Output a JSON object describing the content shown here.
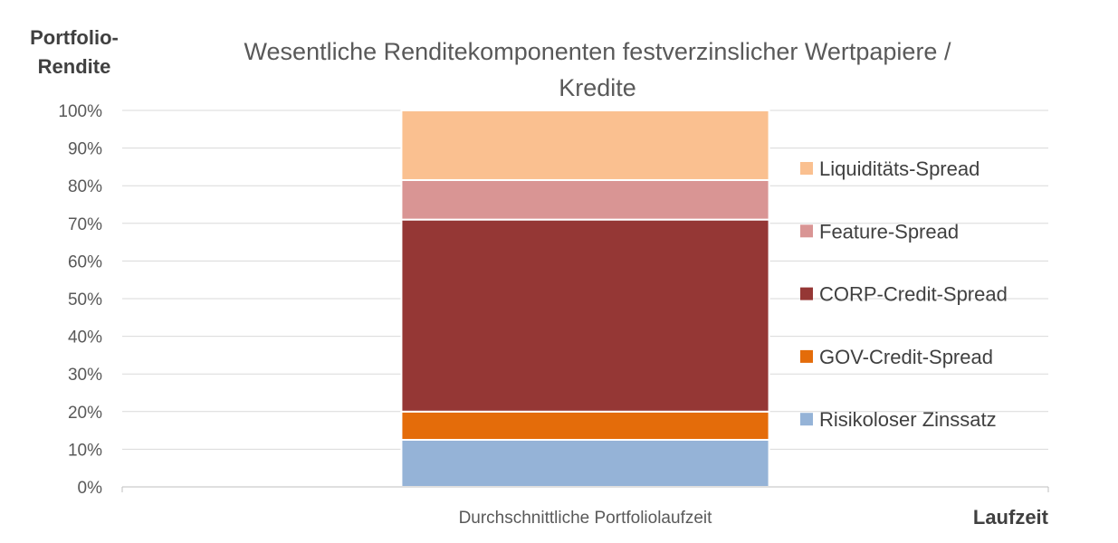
{
  "chart_data": {
    "type": "bar",
    "stacked": true,
    "title_line1": "Wesentliche Renditekomponenten festverzinslicher Wertpapiere /",
    "title_line2": "Kredite",
    "ylabel_line1": "Portfolio-",
    "ylabel_line2": "Rendite",
    "xlabel": "Laufzeit",
    "categories": [
      "Durchschnittliche Portfoliolaufzeit"
    ],
    "ylim": [
      0,
      100
    ],
    "y_ticks": [
      "0%",
      "10%",
      "20%",
      "30%",
      "40%",
      "50%",
      "60%",
      "70%",
      "80%",
      "90%",
      "100%"
    ],
    "grid": true,
    "legend_position": "right",
    "series": [
      {
        "name": "Risikoloser Zinssatz",
        "values": [
          12.5
        ],
        "color": "#95b3d7"
      },
      {
        "name": "GOV-Credit-Spread",
        "values": [
          7.5
        ],
        "color": "#e46c0a"
      },
      {
        "name": "CORP-Credit-Spread",
        "values": [
          51
        ],
        "color": "#953735"
      },
      {
        "name": "Feature-Spread",
        "values": [
          10.5
        ],
        "color": "#d99594"
      },
      {
        "name": "Liquiditäts-Spread",
        "values": [
          18.5
        ],
        "color": "#fac090"
      }
    ]
  }
}
